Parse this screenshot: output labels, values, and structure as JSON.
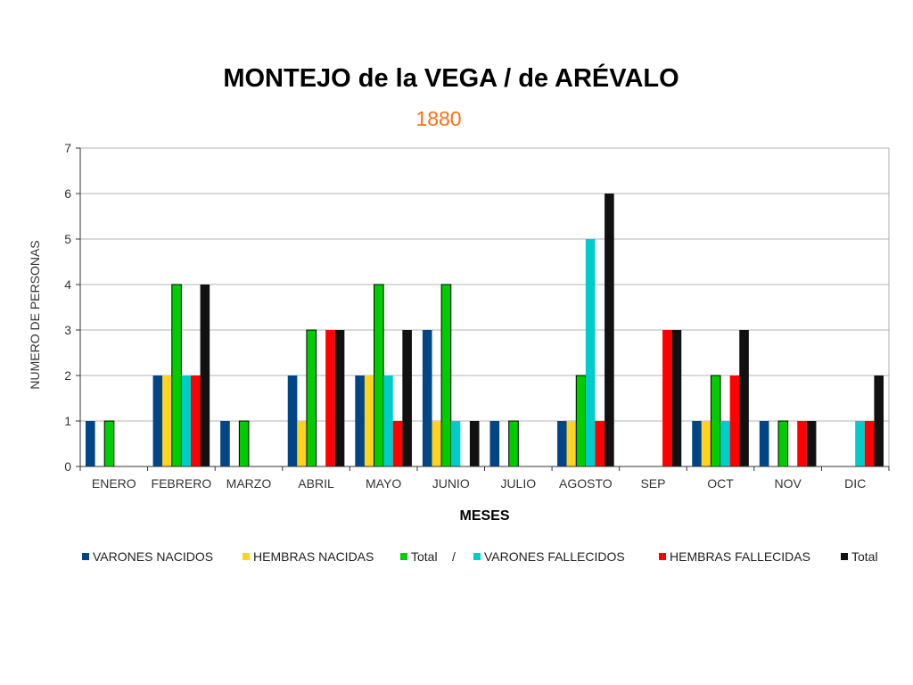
{
  "chart_data": {
    "type": "bar",
    "title": "MONTEJO de la VEGA / de ARÉVALO",
    "subtitle": "1880",
    "xlabel": "MESES",
    "ylabel": "NUMERO DE PERSONAS",
    "ylim": [
      0,
      7
    ],
    "yticks": [
      "0",
      "1",
      "2",
      "3",
      "4",
      "5",
      "6",
      "7"
    ],
    "grid": true,
    "legend_position": "bottom",
    "legend_separator": "/",
    "categories": [
      "ENERO",
      "FEBRERO",
      "MARZO",
      "ABRIL",
      "MAYO",
      "JUNIO",
      "JULIO",
      "AGOSTO",
      "SEP",
      "OCT",
      "NOV",
      "DIC"
    ],
    "series": [
      {
        "name": "VARONES NACIDOS",
        "color": "#004586",
        "values": [
          1,
          2,
          1,
          2,
          2,
          3,
          1,
          1,
          0,
          1,
          1,
          0
        ]
      },
      {
        "name": "HEMBRAS NACIDAS",
        "color": "#ffd320",
        "values": [
          0,
          2,
          0,
          1,
          2,
          1,
          0,
          1,
          0,
          1,
          0,
          0
        ]
      },
      {
        "name": "Total",
        "color": "#00cc00",
        "values": [
          1,
          4,
          1,
          3,
          4,
          4,
          1,
          2,
          0,
          2,
          1,
          0
        ]
      },
      {
        "name": "VARONES FALLECIDOS",
        "color": "#00cccc",
        "values": [
          0,
          2,
          0,
          0,
          2,
          1,
          0,
          5,
          0,
          1,
          0,
          1
        ]
      },
      {
        "name": "HEMBRAS FALLECIDAS",
        "color": "#ff0000",
        "values": [
          0,
          2,
          0,
          3,
          1,
          0,
          0,
          1,
          3,
          2,
          1,
          1
        ]
      },
      {
        "name": "Total",
        "color": "#111111",
        "values": [
          0,
          4,
          0,
          3,
          3,
          1,
          0,
          6,
          3,
          3,
          1,
          2
        ]
      }
    ]
  }
}
